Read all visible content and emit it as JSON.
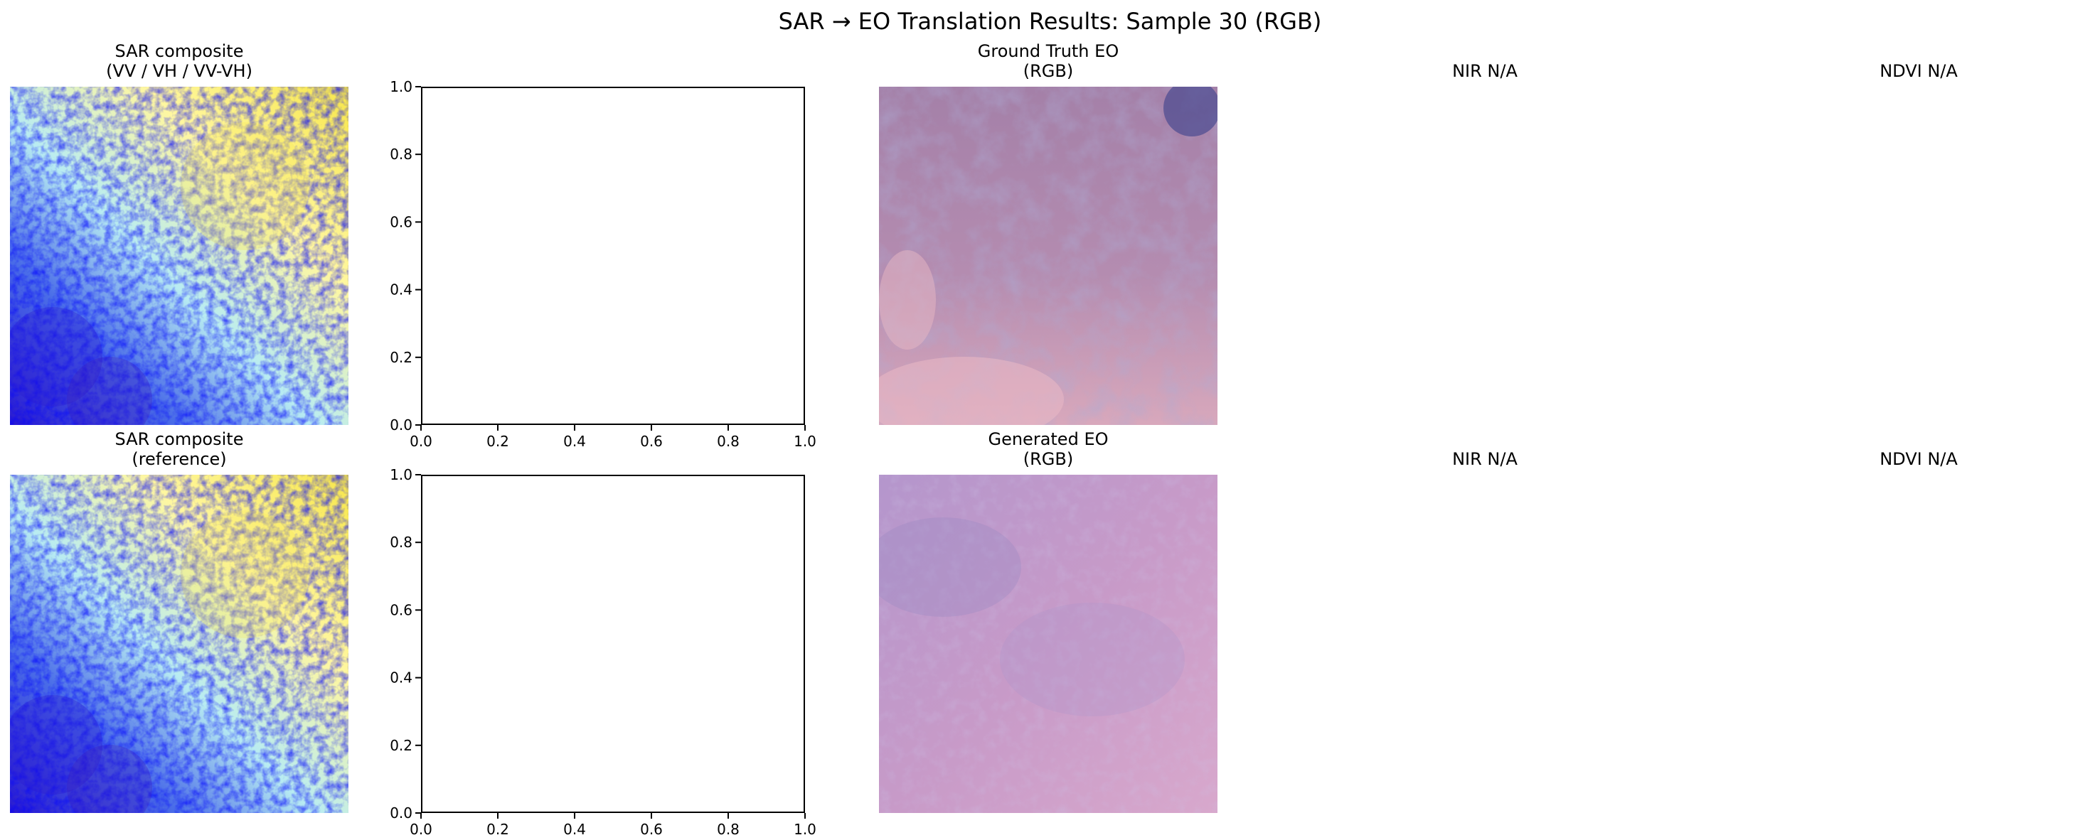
{
  "figure": {
    "title": "SAR → EO Translation Results: Sample 30 (RGB)"
  },
  "rows": [
    {
      "sar_title": "SAR composite\n(VV / VH / VV-VH)",
      "eo_title": "Ground Truth EO\n(RGB)",
      "nir_title": "NIR N/A",
      "ndvi_title": "NDVI N/A"
    },
    {
      "sar_title": "SAR composite\n(reference)",
      "eo_title": "Generated EO\n(RGB)",
      "nir_title": "NIR N/A",
      "ndvi_title": "NDVI N/A"
    }
  ],
  "empty_axis": {
    "x_ticks": [
      "0.0",
      "0.2",
      "0.4",
      "0.6",
      "0.8",
      "1.0"
    ],
    "y_ticks": [
      "0.0",
      "0.2",
      "0.4",
      "0.6",
      "0.8",
      "1.0"
    ]
  },
  "colors": {
    "sar_palette": [
      "#f7e64a",
      "#fff7a0",
      "#b8ecf2",
      "#4a6de8",
      "#2a1ad0",
      "#8a3fa0"
    ],
    "gt_palette": [
      "#c996b6",
      "#a480a8",
      "#e8b8c4",
      "#6b6aa8"
    ],
    "gen_palette": [
      "#c79ac8",
      "#b496cc",
      "#d8a8cc",
      "#9a8ac4"
    ]
  }
}
